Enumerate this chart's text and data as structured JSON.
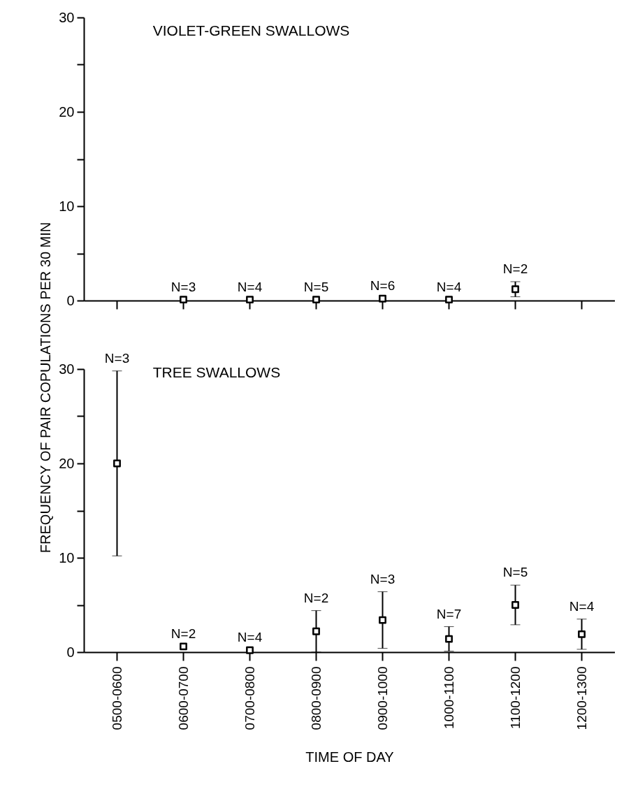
{
  "chart_data": [
    {
      "type": "scatter",
      "title": "VIOLET-GREEN SWALLOWS",
      "ylabel": "FREQUENCY OF PAIR COPULATIONS PER 30 MIN",
      "categories": [
        "0500-0600",
        "0600-0700",
        "0700-0800",
        "0800-0900",
        "0900-1000",
        "1000-1100",
        "1100-1200",
        "1200-1300"
      ],
      "series": [
        {
          "color": "#000000",
          "values": [
            null,
            0.1,
            0.1,
            0.1,
            0.2,
            0.1,
            1.2,
            null
          ],
          "errors": [
            null,
            null,
            null,
            null,
            null,
            null,
            0.8,
            null
          ]
        }
      ],
      "ylim": [
        0,
        30
      ],
      "yticks": [
        0,
        {
          "value": 5,
          "label": null
        },
        10,
        {
          "value": 15,
          "label": null
        },
        20,
        {
          "value": 25,
          "label": null
        },
        30
      ],
      "marker": "square",
      "tick_labels": "y",
      "annotations": [
        {
          "text": "N=3",
          "x": "0600-0700",
          "y": 0.1
        },
        {
          "text": "N=4",
          "x": "0700-0800",
          "y": 0.1
        },
        {
          "text": "N=5",
          "x": "0800-0900",
          "y": 0.1
        },
        {
          "text": "N=6",
          "x": "0900-1000",
          "y": 0.2
        },
        {
          "text": "N=4",
          "x": "1000-1100",
          "y": 0.1
        },
        {
          "text": "N=2",
          "x": "1100-1200",
          "y": 2.0
        }
      ]
    },
    {
      "type": "scatter",
      "title": "TREE SWALLOWS",
      "xlabel": "TIME OF DAY",
      "categories": [
        "0500-0600",
        "0600-0700",
        "0700-0800",
        "0800-0900",
        "0900-1000",
        "1000-1100",
        "1100-1200",
        "1200-1300"
      ],
      "series": [
        {
          "color": "#000000",
          "values": [
            20,
            0.6,
            0.2,
            2.2,
            3.4,
            1.4,
            5.0,
            1.9
          ],
          "errors": [
            9.8,
            null,
            null,
            2.2,
            3.0,
            1.3,
            2.1,
            1.6
          ]
        }
      ],
      "ylim": [
        0,
        30
      ],
      "yticks": [
        0,
        {
          "value": 5,
          "label": null
        },
        10,
        {
          "value": 15,
          "label": null
        },
        20,
        {
          "value": 25,
          "label": null
        },
        30
      ],
      "marker": "square",
      "annotations": [
        {
          "text": "N=3",
          "x": "0500-0600",
          "y": 29.8
        },
        {
          "text": "N=2",
          "x": "0600-0700",
          "y": 0.6
        },
        {
          "text": "N=4",
          "x": "0700-0800",
          "y": 0.2
        },
        {
          "text": "N=2",
          "x": "0800-0900",
          "y": 4.4
        },
        {
          "text": "N=3",
          "x": "0900-1000",
          "y": 6.4
        },
        {
          "text": "N=7",
          "x": "1000-1100",
          "y": 2.7
        },
        {
          "text": "N=5",
          "x": "1100-1200",
          "y": 7.1
        },
        {
          "text": "N=4",
          "x": "1200-1300",
          "y": 3.5
        }
      ]
    }
  ]
}
